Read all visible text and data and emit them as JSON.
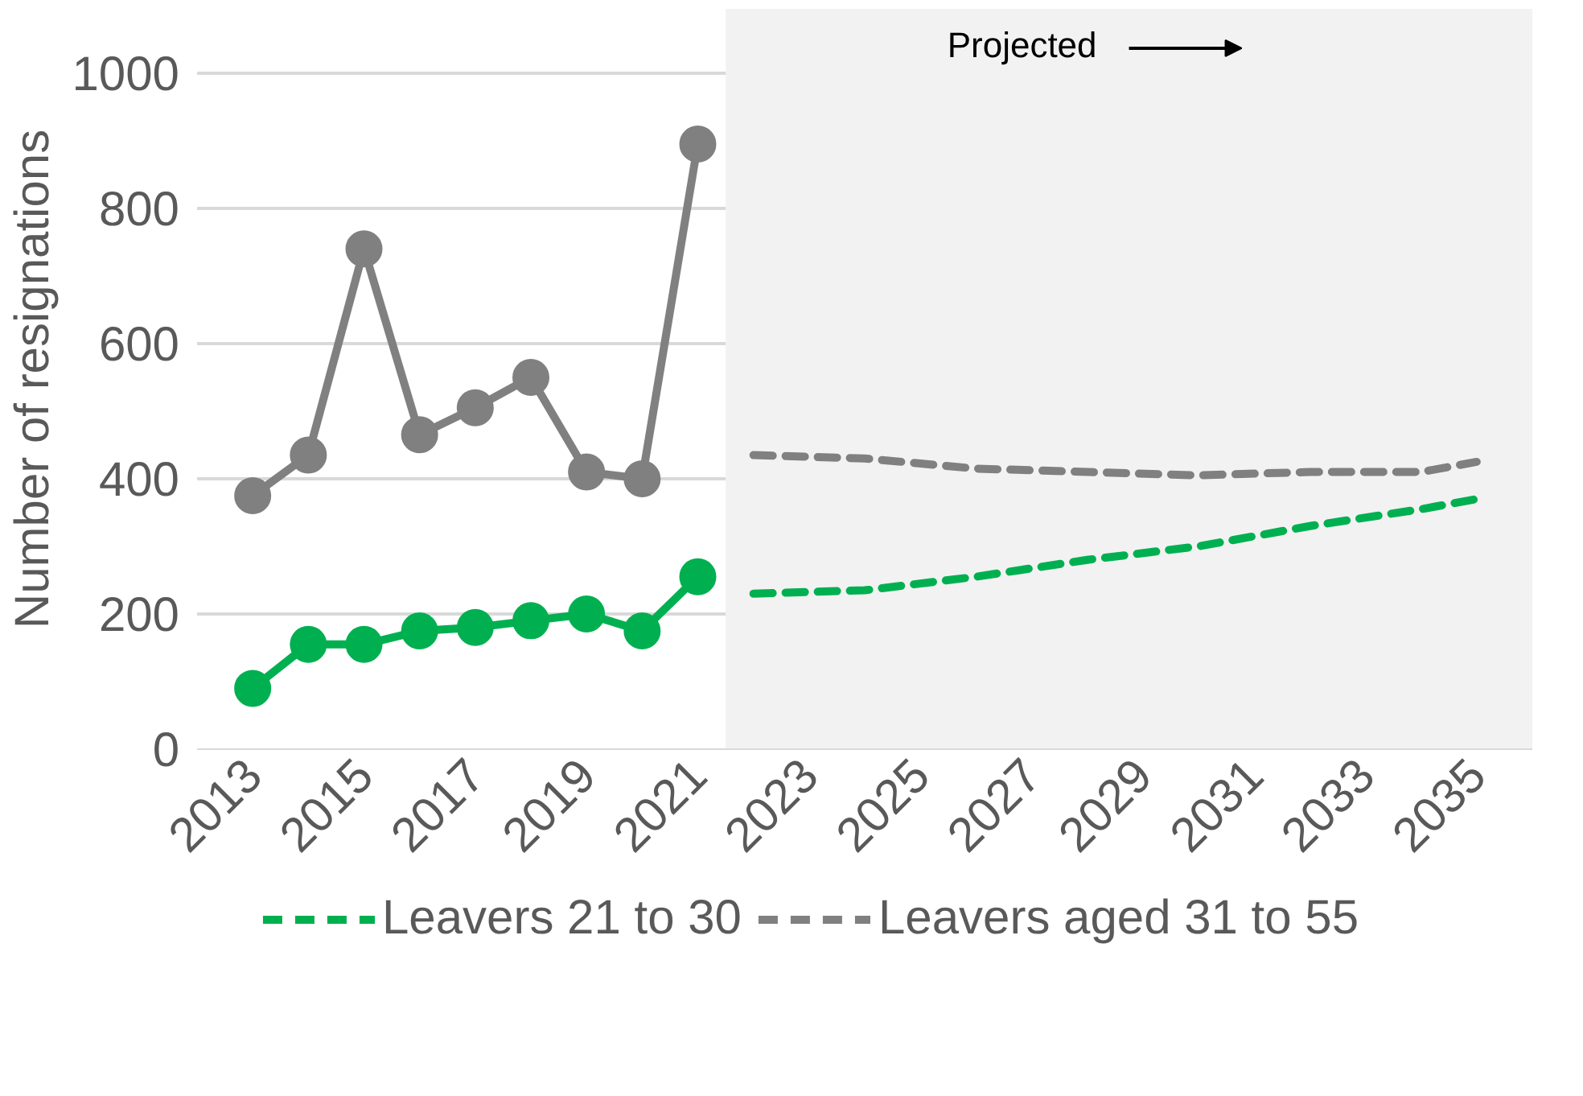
{
  "chart_data": {
    "type": "line",
    "ylabel": "Number of resignations",
    "xlim": [
      2012,
      2036
    ],
    "xticks": [
      2013,
      2015,
      2017,
      2019,
      2021,
      2023,
      2025,
      2027,
      2029,
      2031,
      2033,
      2035
    ],
    "ylim": [
      0,
      1095
    ],
    "yticks": [
      0,
      200,
      400,
      600,
      800,
      1000
    ],
    "grid": "y",
    "legend": "bottom",
    "bands": [
      {
        "axis": "x",
        "from": 2021.5,
        "to": 2036,
        "label": "Projected",
        "color": "#f2f2f2"
      }
    ],
    "series": [
      {
        "color": "#808080",
        "marker": "circle",
        "line_style": "solid",
        "x": [
          2013,
          2014,
          2015,
          2016,
          2017,
          2018,
          2019,
          2020,
          2021
        ],
        "values": [
          375,
          435,
          740,
          465,
          505,
          550,
          410,
          400,
          895
        ]
      },
      {
        "color": "#00b050",
        "marker": "circle",
        "line_style": "solid",
        "x": [
          2013,
          2014,
          2015,
          2016,
          2017,
          2018,
          2019,
          2020,
          2021
        ],
        "values": [
          90,
          155,
          155,
          175,
          180,
          190,
          200,
          175,
          255
        ]
      },
      {
        "name": "Leavers 21 to 30",
        "color": "#00b050",
        "marker": "none",
        "line_style": "dashed",
        "x": [
          2022,
          2024,
          2026,
          2028,
          2030,
          2032,
          2034,
          2035
        ],
        "values": [
          230,
          235,
          255,
          280,
          300,
          330,
          355,
          370
        ]
      },
      {
        "name": "Leavers aged 31 to 55",
        "color": "#808080",
        "marker": "none",
        "line_style": "dashed",
        "x": [
          2022,
          2024,
          2026,
          2028,
          2030,
          2032,
          2034,
          2035
        ],
        "values": [
          435,
          430,
          415,
          410,
          405,
          410,
          410,
          425
        ]
      }
    ]
  }
}
